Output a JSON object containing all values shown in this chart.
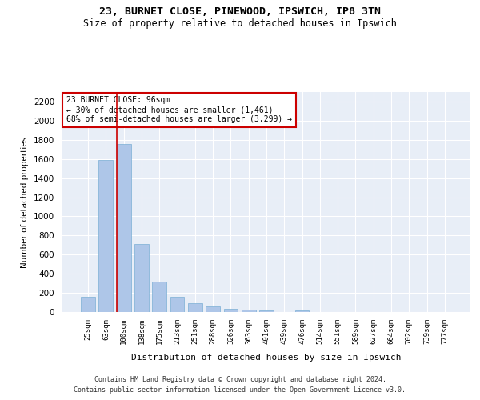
{
  "title_line1": "23, BURNET CLOSE, PINEWOOD, IPSWICH, IP8 3TN",
  "title_line2": "Size of property relative to detached houses in Ipswich",
  "xlabel": "Distribution of detached houses by size in Ipswich",
  "ylabel": "Number of detached properties",
  "categories": [
    "25sqm",
    "63sqm",
    "100sqm",
    "138sqm",
    "175sqm",
    "213sqm",
    "251sqm",
    "288sqm",
    "326sqm",
    "363sqm",
    "401sqm",
    "439sqm",
    "476sqm",
    "514sqm",
    "551sqm",
    "589sqm",
    "627sqm",
    "664sqm",
    "702sqm",
    "739sqm",
    "777sqm"
  ],
  "values": [
    160,
    1590,
    1760,
    710,
    320,
    160,
    90,
    55,
    35,
    25,
    20,
    0,
    20,
    0,
    0,
    0,
    0,
    0,
    0,
    0,
    0
  ],
  "bar_color": "#aec6e8",
  "bar_edge_color": "#7aafd4",
  "background_color": "#e8eef7",
  "grid_color": "#ffffff",
  "vline_color": "#cc0000",
  "annotation_title": "23 BURNET CLOSE: 96sqm",
  "annotation_line2": "← 30% of detached houses are smaller (1,461)",
  "annotation_line3": "68% of semi-detached houses are larger (3,299) →",
  "annotation_box_color": "#cc0000",
  "annotation_bg": "#ffffff",
  "ylim": [
    0,
    2300
  ],
  "yticks": [
    0,
    200,
    400,
    600,
    800,
    1000,
    1200,
    1400,
    1600,
    1800,
    2000,
    2200
  ],
  "footer_line1": "Contains HM Land Registry data © Crown copyright and database right 2024.",
  "footer_line2": "Contains public sector information licensed under the Open Government Licence v3.0."
}
